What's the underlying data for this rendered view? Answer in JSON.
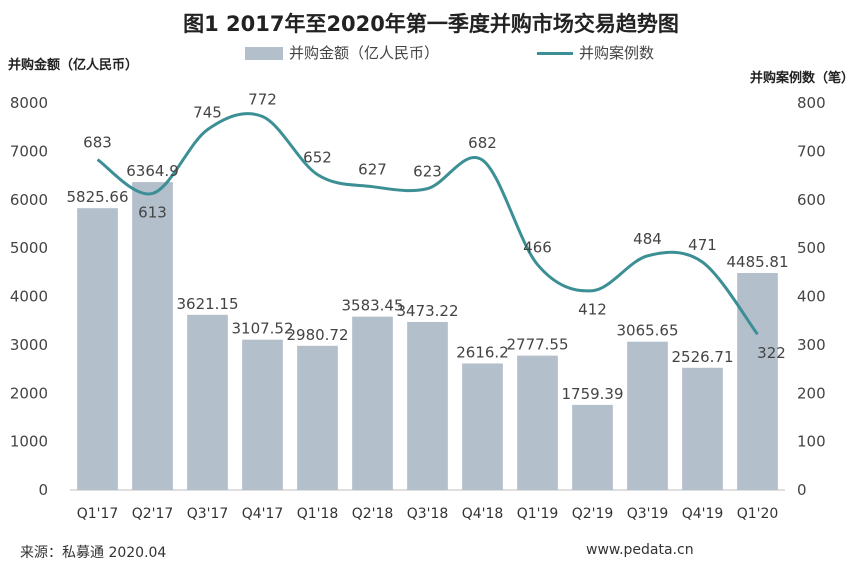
{
  "chart_data": {
    "type": "bar",
    "title": "图1  2017年至2020年第一季度并购市场交易趋势图",
    "ylabel_left": "并购金额（亿人民币）",
    "ylabel_right": "并购案例数（笔）",
    "categories": [
      "Q1'17",
      "Q2'17",
      "Q3'17",
      "Q4'17",
      "Q1'18",
      "Q2'18",
      "Q3'18",
      "Q4'18",
      "Q1'19",
      "Q2'19",
      "Q3'19",
      "Q4'19",
      "Q1'20"
    ],
    "series": [
      {
        "name": "并购金额（亿人民币）",
        "type": "bar",
        "axis": "left",
        "color": "#b4bfcc",
        "values": [
          5825.66,
          6364.9,
          3621.15,
          3107.52,
          2980.72,
          3583.45,
          3473.22,
          2616.2,
          2777.55,
          1759.39,
          3065.65,
          2526.71,
          4485.81
        ],
        "labels": [
          "5825.66",
          "6364.9",
          "3621.15",
          "3107.52",
          "2980.72",
          "3583.45",
          "3473.22",
          "2616.2",
          "2777.55",
          "1759.39",
          "3065.65",
          "2526.71",
          "4485.81"
        ]
      },
      {
        "name": "并购案例数",
        "type": "line",
        "axis": "right",
        "color": "#3b8f95",
        "values": [
          683,
          613,
          745,
          772,
          652,
          627,
          623,
          682,
          466,
          412,
          484,
          471,
          322
        ],
        "labels": [
          "683",
          "613",
          "745",
          "772",
          "652",
          "627",
          "623",
          "682",
          "466",
          "412",
          "484",
          "471",
          "322"
        ]
      }
    ],
    "ylim_left": [
      0,
      8000
    ],
    "yticks_left": [
      "0",
      "1000",
      "2000",
      "3000",
      "4000",
      "5000",
      "6000",
      "7000",
      "8000"
    ],
    "ylim_right": [
      0,
      800
    ],
    "yticks_right": [
      "0",
      "100",
      "200",
      "300",
      "400",
      "500",
      "600",
      "700",
      "800"
    ],
    "grid": false,
    "legend_position": "top"
  },
  "legend": {
    "bar_label": "并购金额（亿人民币）",
    "line_label": "并购案例数"
  },
  "source": "来源：私募通 2020.04",
  "site": "www.pedata.cn"
}
